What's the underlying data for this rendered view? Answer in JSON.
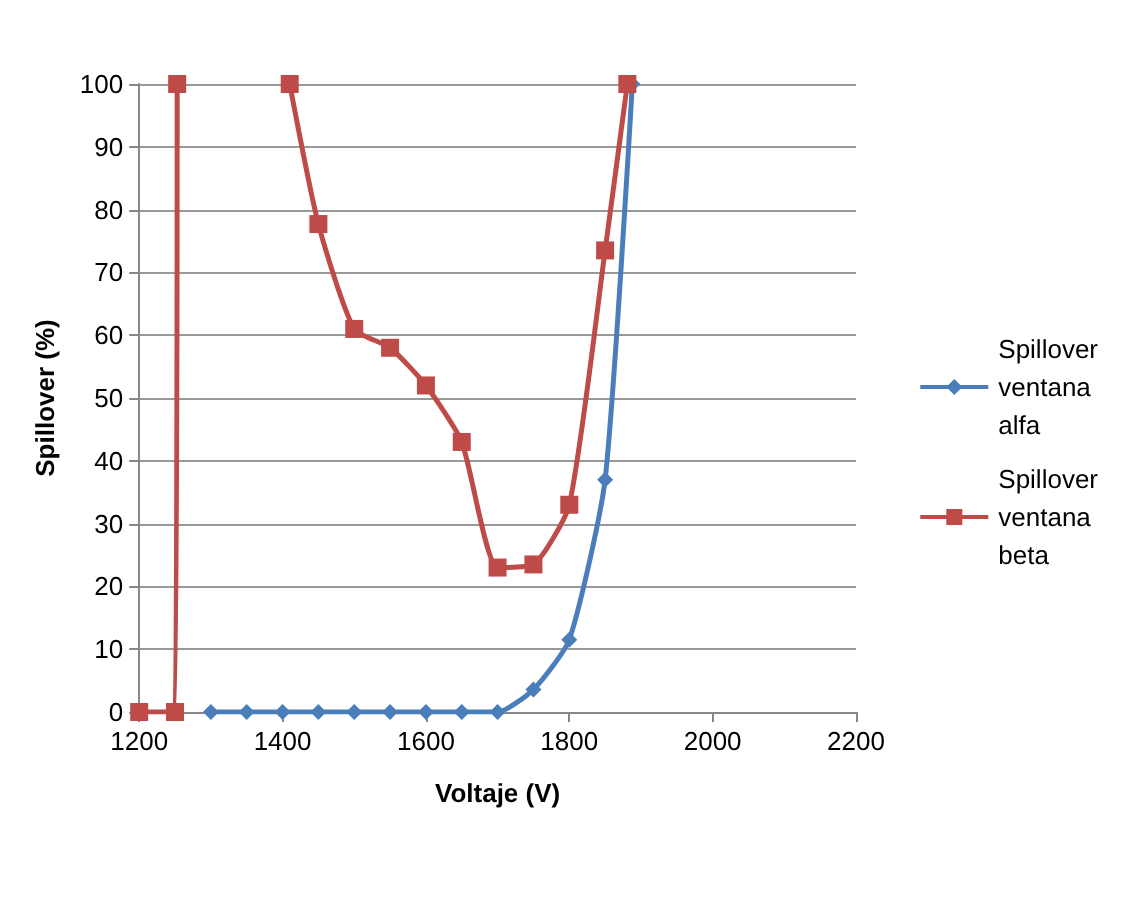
{
  "chart_data": {
    "type": "line",
    "xlabel": "Voltaje (V)",
    "ylabel": "Spillover (%)",
    "xlim": [
      1200,
      2200
    ],
    "xticks": [
      1200,
      1400,
      1600,
      1800,
      2000,
      2200
    ],
    "ylim": [
      0,
      100
    ],
    "yticks": [
      0,
      10,
      20,
      30,
      40,
      50,
      60,
      70,
      80,
      90,
      100
    ],
    "grid": "y",
    "legend": "right",
    "line_style": "solid",
    "series": [
      {
        "name": "Spillover ventana alfa",
        "color": "#4a7ebb",
        "marker": "diamond",
        "x": [
          1300,
          1350,
          1400,
          1450,
          1500,
          1550,
          1600,
          1650,
          1700,
          1750,
          1800,
          1850,
          1888
        ],
        "values": [
          0,
          0,
          0,
          0,
          0,
          0,
          0,
          0,
          0,
          3.6,
          11.5,
          37,
          100
        ]
      },
      {
        "name": "Spillover ventana beta",
        "color": "#be4b48",
        "marker": "square",
        "x": [
          1200,
          1250,
          1253,
          1300,
          1410,
          1450,
          1500,
          1550,
          1600,
          1650,
          1700,
          1750,
          1800,
          1850,
          1881
        ],
        "values": [
          0,
          0,
          100,
          null,
          100,
          77.7,
          61,
          58,
          52,
          43,
          23,
          23.5,
          33,
          73.5,
          100
        ]
      }
    ]
  }
}
